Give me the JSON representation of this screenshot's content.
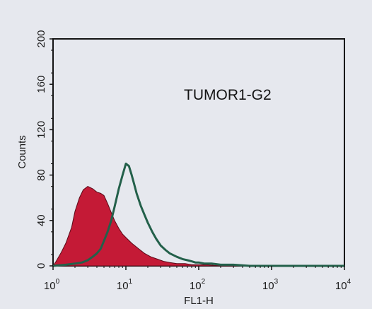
{
  "chart_data": {
    "type": "area",
    "xlabel": "FL1-H",
    "ylabel": "Counts",
    "xscale": "log",
    "xlim": [
      1,
      10000
    ],
    "ylim": [
      0,
      200
    ],
    "grid": false,
    "annotation": "TUMOR1-G2",
    "x_ticks": [
      {
        "base": "10",
        "exp": "0",
        "value": 1
      },
      {
        "base": "10",
        "exp": "1",
        "value": 10
      },
      {
        "base": "10",
        "exp": "2",
        "value": 100
      },
      {
        "base": "10",
        "exp": "3",
        "value": 1000
      },
      {
        "base": "10",
        "exp": "4",
        "value": 10000
      }
    ],
    "y_ticks": [
      "0",
      "40",
      "80",
      "120",
      "160",
      "200"
    ],
    "series": [
      {
        "style": "filled",
        "color": "#c41a36",
        "x": [
          1,
          1.1,
          1.3,
          1.5,
          1.8,
          2.0,
          2.3,
          2.6,
          3.0,
          3.5,
          4.0,
          4.5,
          5.0,
          5.6,
          6.3,
          7.0,
          8.0,
          9.0,
          10,
          12,
          15,
          18,
          22,
          27,
          33,
          40,
          50,
          65,
          80,
          100,
          130,
          200,
          400,
          1000,
          10000
        ],
        "y": [
          0,
          4,
          12,
          20,
          34,
          48,
          60,
          67,
          70,
          68,
          65,
          64,
          62,
          55,
          47,
          40,
          33,
          28,
          25,
          20,
          15,
          11,
          8,
          6,
          4,
          3,
          2,
          2,
          1,
          1,
          1,
          0,
          0,
          0,
          0
        ]
      },
      {
        "style": "outline",
        "color": "#23604a",
        "x": [
          1,
          1.5,
          2,
          2.5,
          3,
          3.5,
          4,
          4.5,
          5,
          5.6,
          6.3,
          7,
          8,
          9,
          10,
          11,
          12,
          13,
          14,
          16,
          18,
          20,
          23,
          26,
          30,
          35,
          40,
          50,
          60,
          70,
          80,
          90,
          100,
          120,
          150,
          200,
          300,
          500,
          1000,
          10000
        ],
        "y": [
          0,
          1,
          2,
          3,
          5,
          8,
          11,
          15,
          22,
          30,
          40,
          52,
          68,
          80,
          90,
          88,
          80,
          72,
          64,
          53,
          45,
          38,
          30,
          24,
          18,
          14,
          11,
          8,
          6,
          5,
          4,
          3,
          3,
          2,
          2,
          1,
          1,
          0,
          0,
          0
        ]
      }
    ]
  }
}
